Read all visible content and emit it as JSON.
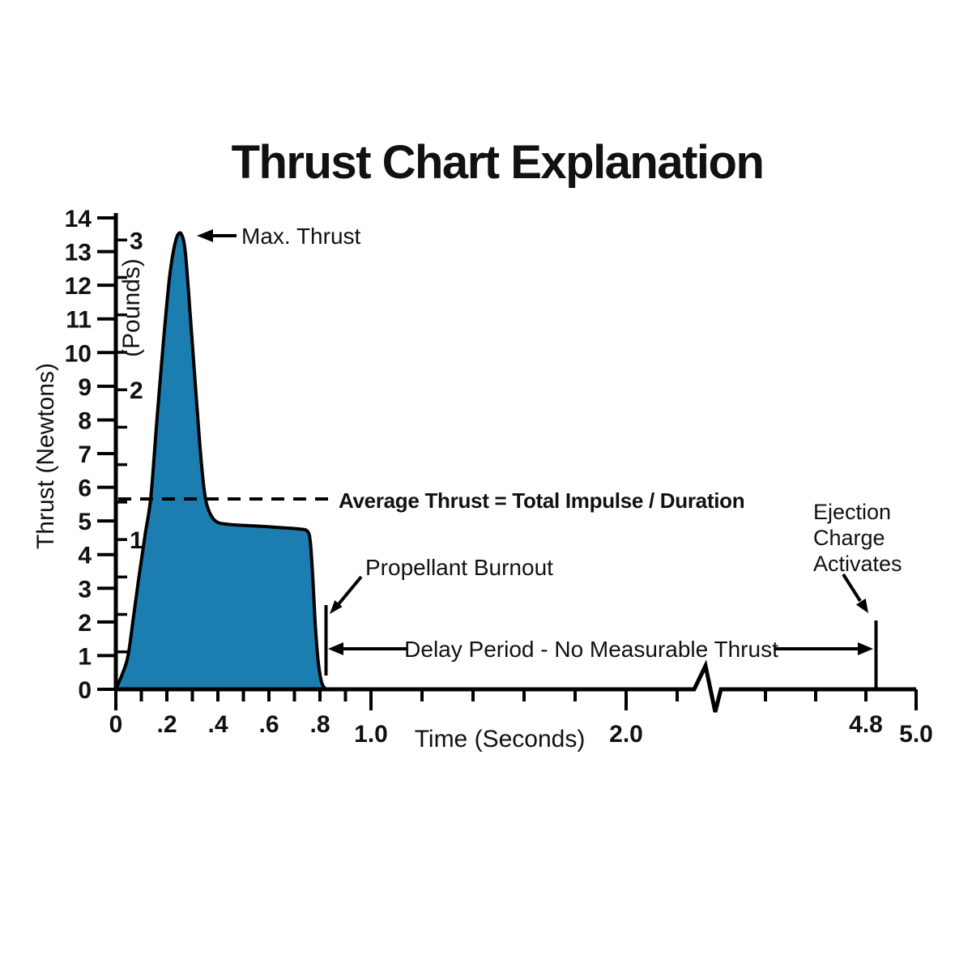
{
  "chart_data": {
    "type": "area",
    "title": "Thrust Chart Explanation",
    "xlabel": "Time (Seconds)",
    "ylabel_left": "Thrust (Newtons)",
    "ylabel_inner": "(Pounds)",
    "x_axis": {
      "range_seconds": [
        0,
        5.0
      ],
      "axis_break_between_seconds": [
        2.3,
        4.3
      ],
      "ticks": [
        {
          "t": 0,
          "label": "0",
          "long": true
        },
        {
          "t": 0.1
        },
        {
          "t": 0.2,
          "label": ".2"
        },
        {
          "t": 0.3
        },
        {
          "t": 0.4,
          "label": ".4"
        },
        {
          "t": 0.5
        },
        {
          "t": 0.6,
          "label": ".6"
        },
        {
          "t": 0.7
        },
        {
          "t": 0.8,
          "label": ".8"
        },
        {
          "t": 0.9
        },
        {
          "t": 1.0,
          "label": "1.0",
          "long": true
        },
        {
          "t": 1.2
        },
        {
          "t": 1.4
        },
        {
          "t": 1.6
        },
        {
          "t": 1.8
        },
        {
          "t": 2.0,
          "label": "2.0",
          "long": true
        },
        {
          "t": 2.2
        },
        {
          "t": 4.4
        },
        {
          "t": 4.6
        },
        {
          "t": 4.8,
          "label": "4.8"
        },
        {
          "t": 5.0,
          "label": "5.0",
          "long": true
        }
      ]
    },
    "y_axis_newtons": {
      "range": [
        0,
        14
      ],
      "ticks": [
        0,
        1,
        2,
        3,
        4,
        5,
        6,
        7,
        8,
        9,
        10,
        11,
        12,
        13,
        14
      ]
    },
    "y_axis_pounds": {
      "labeled_ticks": [
        1,
        2,
        3
      ],
      "minor_tick_step_pounds": 0.25,
      "newtons_per_pound": 4.448
    },
    "series": [
      {
        "name": "thrust-curve",
        "points_time_newtons": [
          [
            0,
            0
          ],
          [
            0.025,
            0.45
          ],
          [
            0.048,
            1.0
          ],
          [
            0.07,
            2.2
          ],
          [
            0.09,
            3.3
          ],
          [
            0.115,
            4.6
          ],
          [
            0.137,
            5.7
          ],
          [
            0.16,
            7.9
          ],
          [
            0.185,
            10.2
          ],
          [
            0.21,
            12.2
          ],
          [
            0.228,
            13.1
          ],
          [
            0.243,
            13.5
          ],
          [
            0.258,
            13.5
          ],
          [
            0.272,
            13.0
          ],
          [
            0.29,
            11.3
          ],
          [
            0.31,
            9.2
          ],
          [
            0.33,
            7.2
          ],
          [
            0.345,
            6.0
          ],
          [
            0.36,
            5.4
          ],
          [
            0.39,
            5.0
          ],
          [
            0.44,
            4.9
          ],
          [
            0.55,
            4.85
          ],
          [
            0.65,
            4.8
          ],
          [
            0.72,
            4.76
          ],
          [
            0.75,
            4.7
          ],
          [
            0.762,
            4.4
          ],
          [
            0.772,
            3.3
          ],
          [
            0.781,
            2.0
          ],
          [
            0.792,
            0.9
          ],
          [
            0.805,
            0.25
          ],
          [
            0.818,
            0.04
          ],
          [
            0.825,
            0
          ]
        ]
      }
    ],
    "max_thrust_newtons": 13.5,
    "average_thrust_newtons": 5.66,
    "burnout_time_seconds": 0.8,
    "ejection_time_seconds": 4.8,
    "colors": {
      "fill": "#1b7db0",
      "stroke": "#000000"
    }
  },
  "annotations": {
    "max_thrust": "Max. Thrust",
    "average_thrust": "Average Thrust = Total Impulse / Duration",
    "propellant_burnout": "Propellant Burnout",
    "delay_period": "Delay Period - No Measurable Thrust",
    "ejection_charge": [
      "Ejection",
      "Charge",
      "Activates"
    ]
  }
}
